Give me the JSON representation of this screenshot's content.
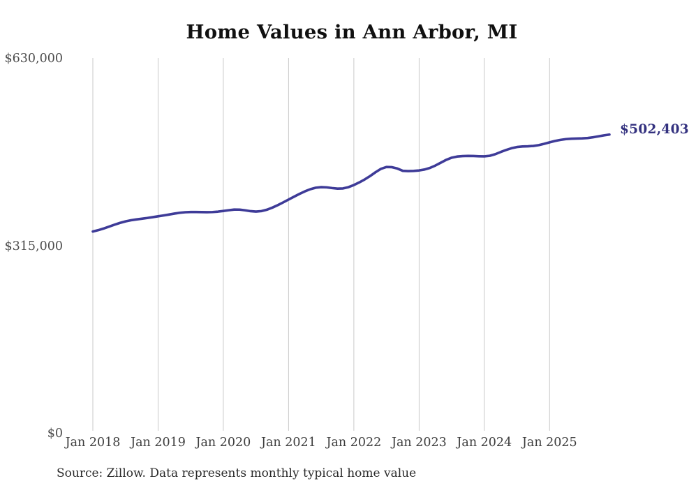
{
  "title": "Home Values in Ann Arbor, MI",
  "end_label": "$502,403",
  "source_note": "Source: Zillow. Data represents monthly typical home value",
  "colors": {
    "background": "#ffffff",
    "line": "#3e3b98",
    "end_label": "#33317f",
    "grid": "#c9c9c9",
    "title": "#101010",
    "y_axis_text": "#4d4d4d",
    "x_axis_text": "#3d3d3d",
    "source_text": "#2a2a2a"
  },
  "chart_data": {
    "type": "line",
    "title": "Home Values in Ann Arbor, MI",
    "series_name": "Typical home value (monthly)",
    "frequency": "monthly",
    "start_month": "2018-01",
    "end_month": "2025-12",
    "last_value": 502403,
    "ylim": [
      0,
      630000
    ],
    "grid": "vertical-only",
    "legend_position": "none",
    "y_ticks": [
      {
        "label": "$630,000",
        "value": 630000
      },
      {
        "label": "$315,000",
        "value": 315000
      },
      {
        "label": "$0",
        "value": 0
      }
    ],
    "x_ticks": [
      {
        "label": "Jan 2018",
        "index": 0
      },
      {
        "label": "Jan 2019",
        "index": 12
      },
      {
        "label": "Jan 2020",
        "index": 24
      },
      {
        "label": "Jan 2021",
        "index": 36
      },
      {
        "label": "Jan 2022",
        "index": 48
      },
      {
        "label": "Jan 2023",
        "index": 60
      },
      {
        "label": "Jan 2024",
        "index": 72
      },
      {
        "label": "Jan 2025",
        "index": 84
      }
    ],
    "values": [
      339500,
      341800,
      344600,
      347800,
      351000,
      354000,
      356500,
      358400,
      359800,
      361000,
      362200,
      363600,
      365100,
      366500,
      368000,
      369600,
      371000,
      371900,
      372300,
      372300,
      372100,
      372000,
      372200,
      372900,
      374000,
      375300,
      376400,
      376300,
      375100,
      373700,
      373000,
      373800,
      376100,
      379600,
      383800,
      388400,
      393200,
      398000,
      402700,
      407000,
      410600,
      413100,
      414100,
      413700,
      412500,
      411600,
      411900,
      414000,
      417600,
      422000,
      427000,
      432800,
      439200,
      444900,
      447900,
      447600,
      445300,
      441500,
      441000,
      441300,
      442100,
      443700,
      446400,
      450400,
      455200,
      460000,
      463600,
      465500,
      466300,
      466500,
      466400,
      466000,
      465800,
      466800,
      469400,
      473100,
      476500,
      479500,
      481500,
      482400,
      482700,
      483300,
      484700,
      486900,
      489400,
      491700,
      493500,
      494800,
      495500,
      495800,
      496000,
      496600,
      497900,
      499500,
      501100,
      502403
    ]
  }
}
